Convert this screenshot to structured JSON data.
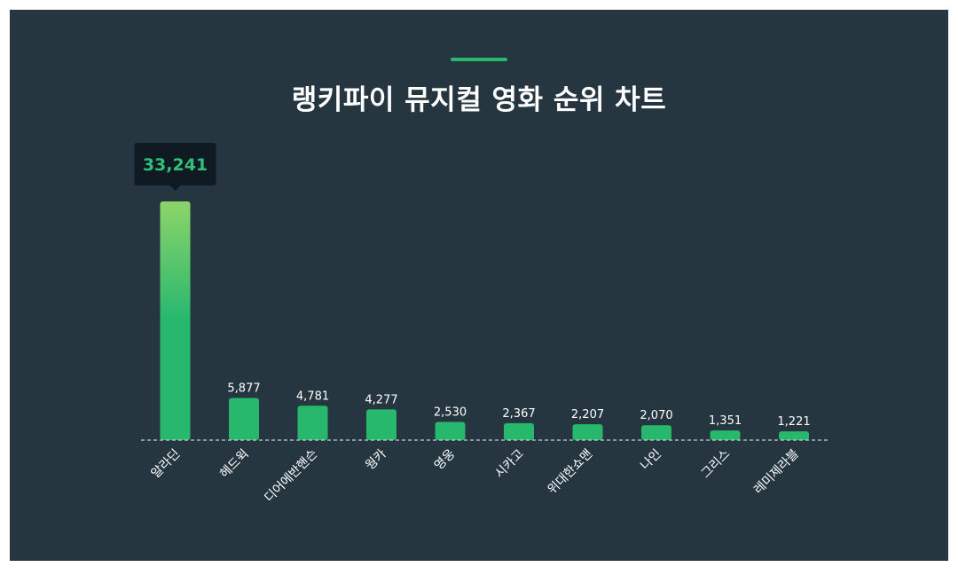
{
  "chart_data": {
    "type": "bar",
    "title": "랭키파이 뮤지컬 영화 순위 차트",
    "categories": [
      "알라딘",
      "헤드윅",
      "디어에반핸슨",
      "웡카",
      "영웅",
      "시카고",
      "위대한쇼맨",
      "나인",
      "그리스",
      "레미제라블"
    ],
    "values": [
      33241,
      5877,
      4781,
      4277,
      2530,
      2367,
      2207,
      2070,
      1351,
      1221
    ],
    "value_labels": [
      "33,241",
      "5,877",
      "4,781",
      "4,277",
      "2,530",
      "2,367",
      "2,207",
      "2,070",
      "1,351",
      "1,221"
    ],
    "highlight_index": 0,
    "xlabel": "",
    "ylabel": "",
    "ylim": [
      0,
      33241
    ],
    "grid": false,
    "legend": "none",
    "colors": {
      "panel": "#263640",
      "bar": "#27b86e",
      "bar_top_highlight": "#8dd46a",
      "tooltip_bg": "#0f1a22",
      "tooltip_text": "#2fc07a",
      "baseline": "#c8d0d4"
    }
  }
}
